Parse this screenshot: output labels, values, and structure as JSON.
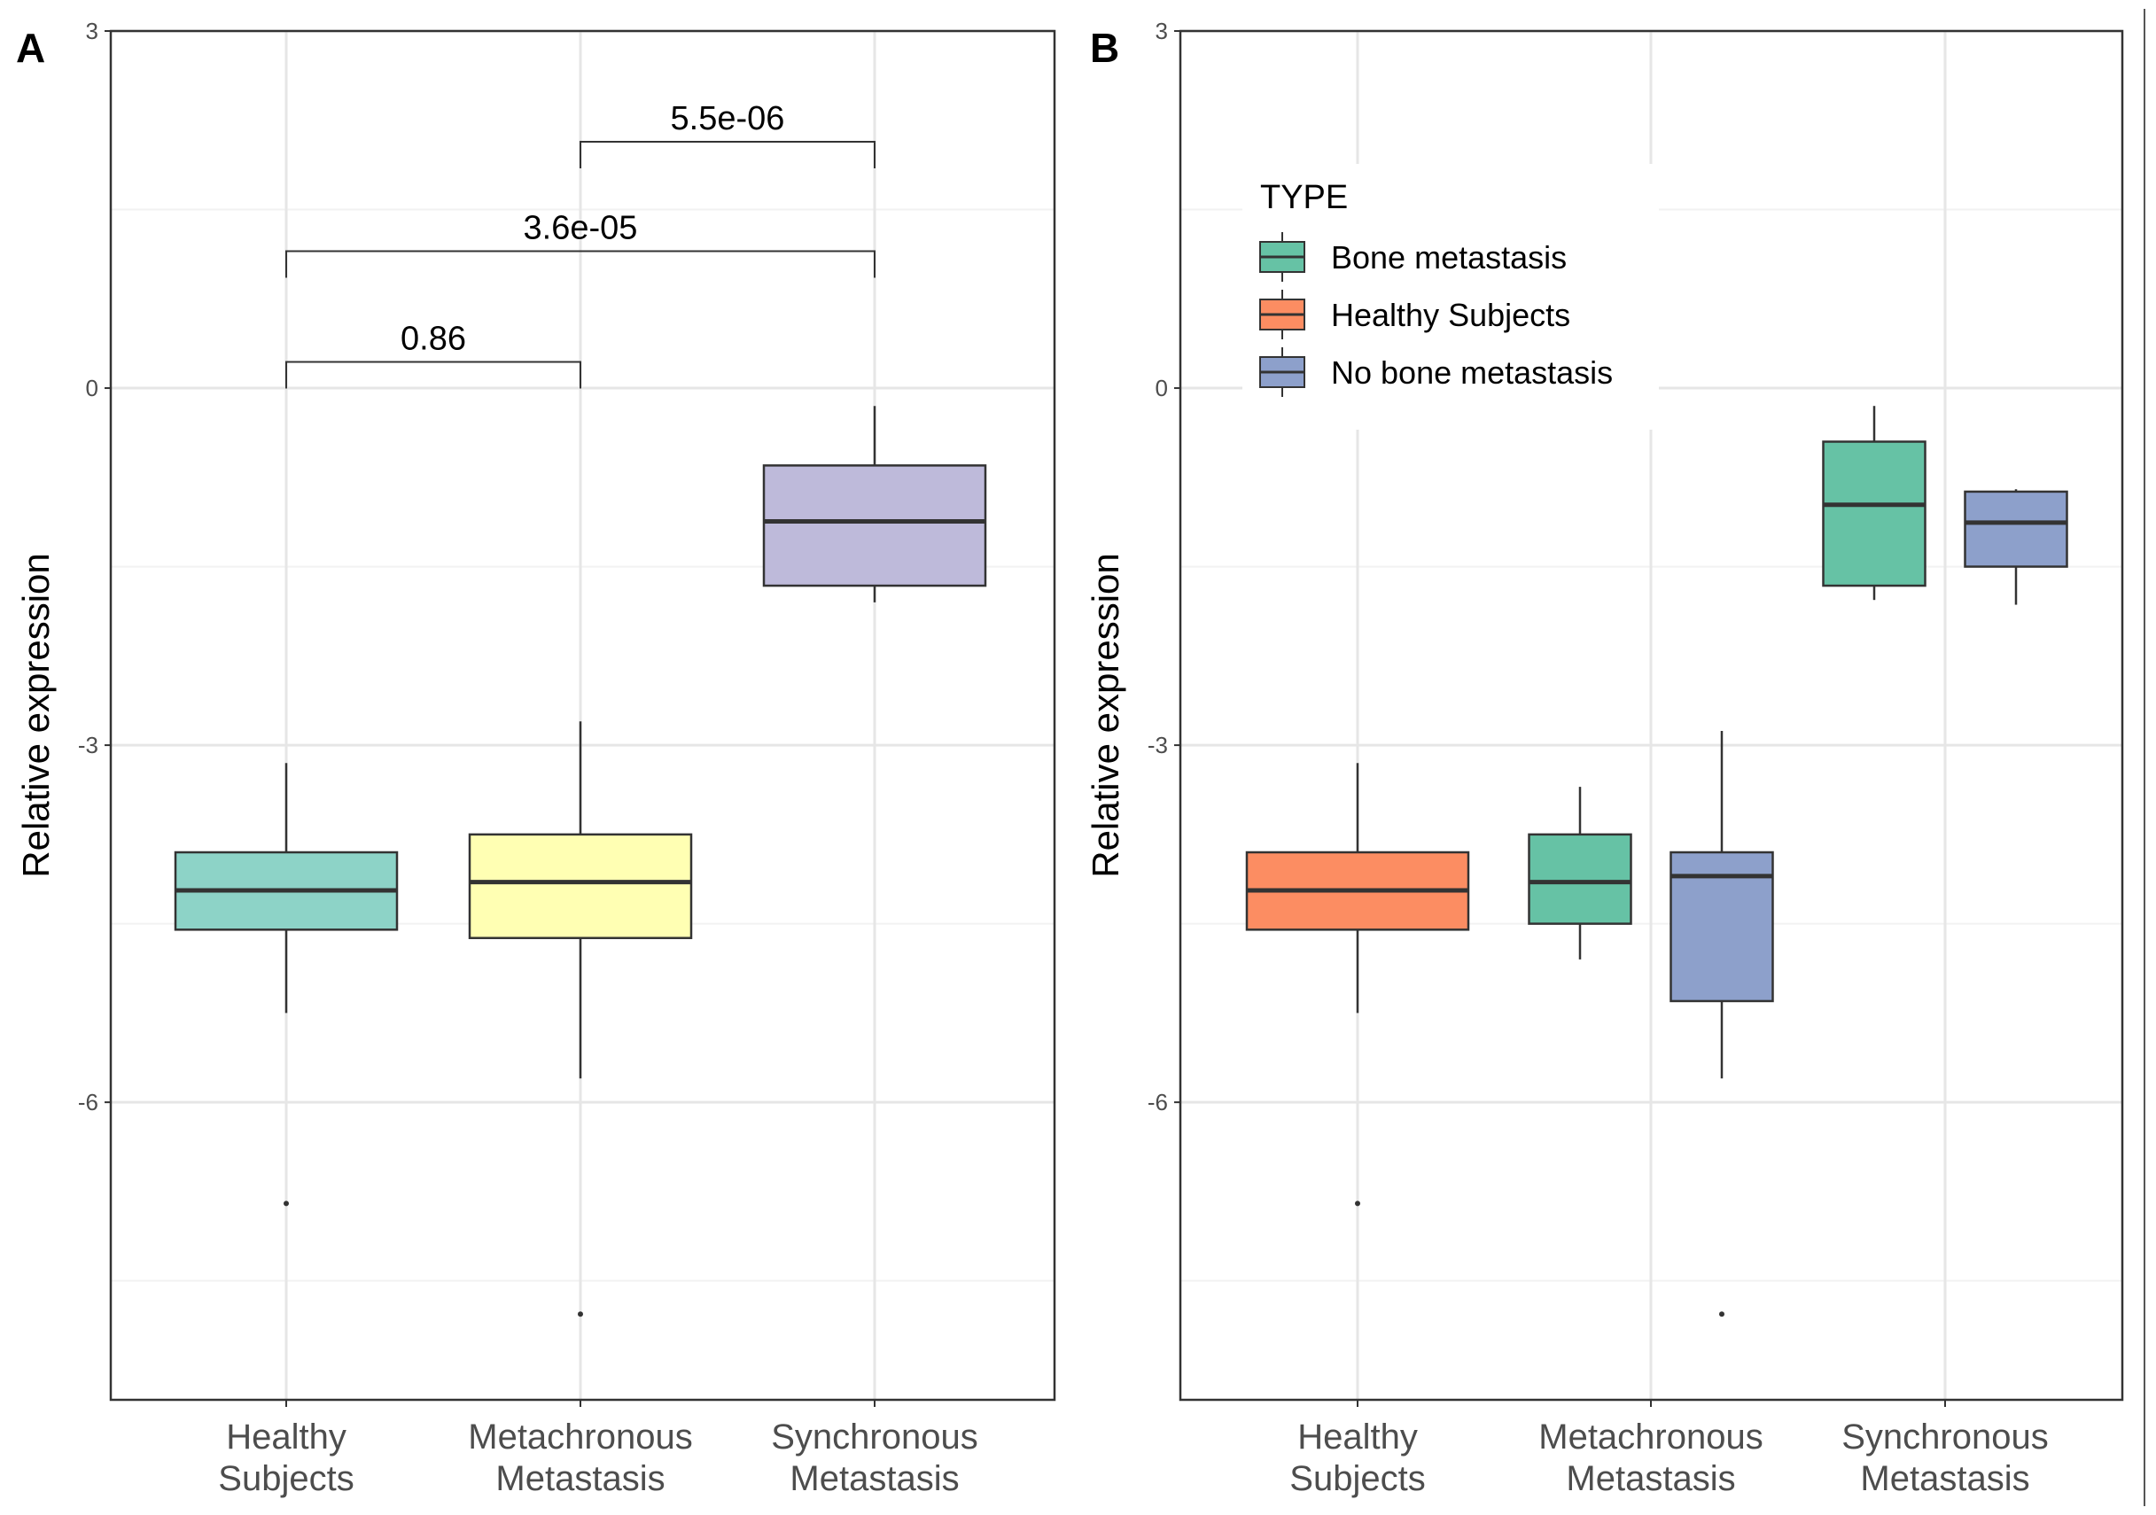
{
  "chart_data": [
    {
      "type": "boxplot",
      "panel_label": "A",
      "ylabel": "Relative expression",
      "ylim": [
        -8.5,
        3
      ],
      "yticks": [
        -6,
        -3,
        0,
        3
      ],
      "grid": true,
      "categories": [
        {
          "line1": "Healthy",
          "line2": "Subjects"
        },
        {
          "line1": "Metachronous",
          "line2": "Metastasis"
        },
        {
          "line1": "Synchronous",
          "line2": "Metastasis"
        }
      ],
      "boxes": [
        {
          "category": 0,
          "color": "#8dd3c7",
          "whisker_low": -5.25,
          "q1": -4.55,
          "median": -4.22,
          "q3": -3.9,
          "whisker_high": -3.15,
          "outliers": [
            -6.85
          ]
        },
        {
          "category": 1,
          "color": "#ffffb3",
          "whisker_low": -5.8,
          "q1": -4.62,
          "median": -4.15,
          "q3": -3.75,
          "whisker_high": -2.8,
          "outliers": [
            -7.78
          ]
        },
        {
          "category": 2,
          "color": "#bebada",
          "whisker_low": -1.8,
          "q1": -1.66,
          "median": -1.12,
          "q3": -0.65,
          "whisker_high": -0.15,
          "outliers": []
        }
      ],
      "comparisons": [
        {
          "from": 0,
          "to": 1,
          "y": 0.22,
          "label": "0.86"
        },
        {
          "from": 0,
          "to": 2,
          "y": 1.15,
          "label": "3.6e-05"
        },
        {
          "from": 1,
          "to": 2,
          "y": 2.07,
          "label": "5.5e-06"
        }
      ]
    },
    {
      "type": "boxplot",
      "panel_label": "B",
      "ylabel": "Relative expression",
      "ylim": [
        -8.5,
        3
      ],
      "yticks": [
        -6,
        -3,
        0,
        3
      ],
      "grid": true,
      "categories": [
        {
          "line1": "Healthy",
          "line2": "Subjects"
        },
        {
          "line1": "Metachronous",
          "line2": "Metastasis"
        },
        {
          "line1": "Synchronous",
          "line2": "Metastasis"
        }
      ],
      "legend": {
        "title": "TYPE",
        "position": "top-left",
        "entries": [
          {
            "label": "Bone metastasis",
            "color": "#66c2a5"
          },
          {
            "label": "Healthy Subjects",
            "color": "#fc8d62"
          },
          {
            "label": "No bone metastasis",
            "color": "#8da0cb"
          }
        ]
      },
      "boxes": [
        {
          "category": 0,
          "group": "Healthy Subjects",
          "offset": 0,
          "color": "#fc8d62",
          "whisker_low": -5.25,
          "q1": -4.55,
          "median": -4.22,
          "q3": -3.9,
          "whisker_high": -3.15,
          "outliers": [
            -6.85
          ]
        },
        {
          "category": 1,
          "group": "Bone metastasis",
          "offset": -1,
          "color": "#66c2a5",
          "whisker_low": -4.8,
          "q1": -4.5,
          "median": -4.15,
          "q3": -3.75,
          "whisker_high": -3.35,
          "outliers": []
        },
        {
          "category": 1,
          "group": "No bone metastasis",
          "offset": 1,
          "color": "#8da0cb",
          "whisker_low": -5.8,
          "q1": -5.15,
          "median": -4.1,
          "q3": -3.9,
          "whisker_high": -2.88,
          "outliers": [
            -7.78
          ]
        },
        {
          "category": 2,
          "group": "Bone metastasis",
          "offset": -1,
          "color": "#66c2a5",
          "whisker_low": -1.78,
          "q1": -1.66,
          "median": -0.98,
          "q3": -0.45,
          "whisker_high": -0.15,
          "outliers": []
        },
        {
          "category": 2,
          "group": "No bone metastasis",
          "offset": 1,
          "color": "#8da0cb",
          "whisker_low": -1.82,
          "q1": -1.5,
          "median": -1.13,
          "q3": -0.87,
          "whisker_high": -0.85,
          "outliers": []
        }
      ]
    }
  ]
}
